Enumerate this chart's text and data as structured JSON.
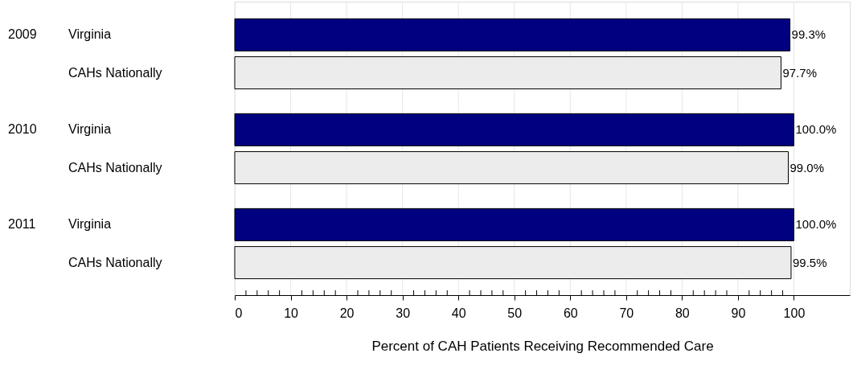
{
  "chart_data": {
    "type": "bar",
    "orientation": "horizontal",
    "categories": [
      "Virginia",
      "CAHs Nationally",
      "Virginia",
      "CAHs Nationally",
      "Virginia",
      "CAHs Nationally"
    ],
    "values": [
      99.3,
      97.7,
      100.0,
      99.0,
      100.0,
      99.5
    ],
    "value_labels": [
      "99.3%",
      "97.7%",
      "100.0%",
      "99.0%",
      "100.0%",
      "99.5%"
    ],
    "colors": [
      "#000080",
      "#ececec",
      "#000080",
      "#ececec",
      "#000080",
      "#ececec"
    ],
    "annotations": [
      "2009",
      "2010",
      "2011"
    ],
    "xlabel": "Percent of CAH Patients Receiving Recommended Care",
    "xlim": [
      0,
      110
    ],
    "xticks": [
      0,
      {
        "value": 2,
        "label": null
      },
      {
        "value": 4,
        "label": null
      },
      {
        "value": 6,
        "label": null
      },
      {
        "value": 8,
        "label": null
      },
      10,
      {
        "value": 12,
        "label": null
      },
      {
        "value": 14,
        "label": null
      },
      {
        "value": 16,
        "label": null
      },
      {
        "value": 18,
        "label": null
      },
      20,
      {
        "value": 22,
        "label": null
      },
      {
        "value": 24,
        "label": null
      },
      {
        "value": 26,
        "label": null
      },
      {
        "value": 28,
        "label": null
      },
      30,
      {
        "value": 32,
        "label": null
      },
      {
        "value": 34,
        "label": null
      },
      {
        "value": 36,
        "label": null
      },
      {
        "value": 38,
        "label": null
      },
      40,
      {
        "value": 42,
        "label": null
      },
      {
        "value": 44,
        "label": null
      },
      {
        "value": 46,
        "label": null
      },
      {
        "value": 48,
        "label": null
      },
      50,
      {
        "value": 52,
        "label": null
      },
      {
        "value": 54,
        "label": null
      },
      {
        "value": 56,
        "label": null
      },
      {
        "value": 58,
        "label": null
      },
      60,
      {
        "value": 62,
        "label": null
      },
      {
        "value": 64,
        "label": null
      },
      {
        "value": 66,
        "label": null
      },
      {
        "value": 68,
        "label": null
      },
      70,
      {
        "value": 72,
        "label": null
      },
      {
        "value": 74,
        "label": null
      },
      {
        "value": 76,
        "label": null
      },
      {
        "value": 78,
        "label": null
      },
      80,
      {
        "value": 82,
        "label": null
      },
      {
        "value": 84,
        "label": null
      },
      {
        "value": 86,
        "label": null
      },
      {
        "value": 88,
        "label": null
      },
      90,
      {
        "value": 92,
        "label": null
      },
      {
        "value": 94,
        "label": null
      },
      {
        "value": 96,
        "label": null
      },
      {
        "value": 98,
        "label": null
      },
      100
    ],
    "grid": "x"
  }
}
